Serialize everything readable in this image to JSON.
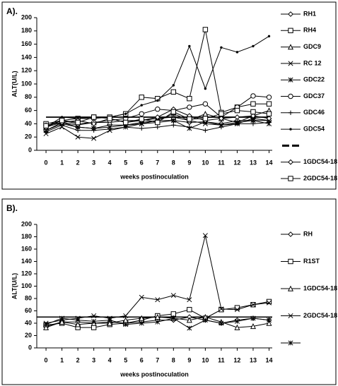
{
  "chart_data": [
    {
      "type": "line",
      "label": "A).",
      "y_label": "ALT(U/L)",
      "x_label": "weeks postinoculation",
      "x": [
        0,
        1,
        2,
        3,
        4,
        5,
        6,
        7,
        8,
        9,
        10,
        11,
        12,
        13,
        14
      ],
      "xlim": [
        -0.58,
        14.2
      ],
      "xticks": [
        0,
        1,
        2,
        3,
        4,
        5,
        6,
        7,
        8,
        9,
        10,
        11,
        12,
        13,
        14
      ],
      "ylim": [
        0,
        200
      ],
      "yticks": [
        0,
        20,
        40,
        60,
        80,
        100,
        120,
        140,
        160,
        180,
        200
      ],
      "series": [
        {
          "name": "RH1",
          "color": "#000000",
          "marker": "diamond",
          "values": [
            30,
            42,
            35,
            33,
            38,
            38,
            42,
            45,
            45,
            42,
            43,
            40,
            45,
            45,
            45
          ]
        },
        {
          "name": "RH4",
          "color": "#000000",
          "marker": "square",
          "values": [
            40,
            45,
            48,
            50,
            50,
            55,
            80,
            78,
            88,
            78,
            182,
            57,
            65,
            70,
            70
          ]
        },
        {
          "name": "GDC9",
          "color": "#000000",
          "marker": "triangle",
          "values": [
            35,
            42,
            38,
            42,
            42,
            45,
            45,
            48,
            50,
            45,
            55,
            48,
            42,
            52,
            60
          ]
        },
        {
          "name": "RC 12",
          "color": "#000000",
          "marker": "x",
          "values": [
            25,
            35,
            20,
            18,
            30,
            35,
            40,
            45,
            55,
            45,
            40,
            38,
            40,
            48,
            45
          ]
        },
        {
          "name": "GDC22",
          "color": "#000000",
          "marker": "asterisk",
          "values": [
            30,
            40,
            35,
            33,
            35,
            38,
            40,
            42,
            45,
            33,
            43,
            38,
            42,
            45,
            40
          ]
        },
        {
          "name": "GDC37",
          "color": "#000000",
          "marker": "circle",
          "values": [
            35,
            45,
            40,
            42,
            45,
            48,
            55,
            62,
            60,
            65,
            70,
            50,
            65,
            82,
            80
          ]
        },
        {
          "name": "GDC46",
          "color": "#000000",
          "marker": "plus",
          "values": [
            28,
            38,
            30,
            30,
            32,
            35,
            33,
            35,
            38,
            35,
            30,
            35,
            40,
            40,
            42
          ]
        },
        {
          "name": "GDC54",
          "color": "#000000",
          "marker": "dot",
          "values": [
            35,
            50,
            48,
            48,
            50,
            55,
            68,
            75,
            98,
            157,
            93,
            155,
            148,
            157,
            172
          ]
        },
        {
          "name": null,
          "color": "#000000",
          "marker": "thick",
          "values": [
            50,
            50,
            50,
            50,
            50,
            50,
            50,
            50,
            50,
            50,
            50,
            50,
            50,
            50,
            50
          ]
        },
        {
          "name": "1GDC54-18",
          "color": "#000000",
          "marker": "diamond",
          "values": [
            38,
            42,
            45,
            40,
            48,
            42,
            45,
            50,
            62,
            52,
            45,
            48,
            50,
            52,
            48
          ]
        },
        {
          "name": "2GDC54-18",
          "color": "#000000",
          "marker": "square",
          "values": [
            37,
            45,
            42,
            50,
            48,
            42,
            47,
            42,
            58,
            47,
            48,
            55,
            60,
            58,
            55
          ]
        }
      ]
    },
    {
      "type": "line",
      "label": "B).",
      "y_label": "ALT(U/L)",
      "x_label": "weeks postinoculation",
      "x": [
        0,
        1,
        2,
        3,
        4,
        5,
        6,
        7,
        8,
        9,
        10,
        11,
        12,
        13,
        14
      ],
      "xlim": [
        -0.58,
        14.2
      ],
      "xticks": [
        0,
        1,
        2,
        3,
        4,
        5,
        6,
        7,
        8,
        9,
        10,
        11,
        12,
        13,
        14
      ],
      "ylim": [
        0,
        200
      ],
      "yticks": [
        0,
        20,
        40,
        60,
        80,
        100,
        120,
        140,
        160,
        180,
        200
      ],
      "reference_line": 50,
      "series": [
        {
          "name": "RH",
          "color": "#000000",
          "marker": "diamond",
          "values": [
            35,
            42,
            42,
            40,
            42,
            40,
            42,
            45,
            45,
            50,
            45,
            40,
            45,
            48,
            45
          ]
        },
        {
          "name": "R1ST",
          "color": "#000000",
          "marker": "square",
          "values": [
            37,
            40,
            33,
            33,
            38,
            40,
            45,
            52,
            55,
            62,
            48,
            62,
            65,
            70,
            75
          ]
        },
        {
          "name": "1GDC54-18",
          "color": "#000000",
          "marker": "triangle",
          "values": [
            33,
            42,
            38,
            40,
            40,
            45,
            48,
            50,
            48,
            45,
            50,
            42,
            33,
            35,
            40
          ]
        },
        {
          "name": "2GDC54-18",
          "color": "#000000",
          "marker": "x",
          "values": [
            40,
            45,
            48,
            52,
            48,
            52,
            82,
            78,
            85,
            78,
            182,
            63,
            62,
            70,
            73
          ]
        },
        {
          "name": null,
          "color": "#000000",
          "marker": "asterisk",
          "values": [
            38,
            48,
            45,
            43,
            45,
            38,
            40,
            42,
            48,
            32,
            45,
            40,
            43,
            48,
            45
          ]
        }
      ]
    }
  ]
}
